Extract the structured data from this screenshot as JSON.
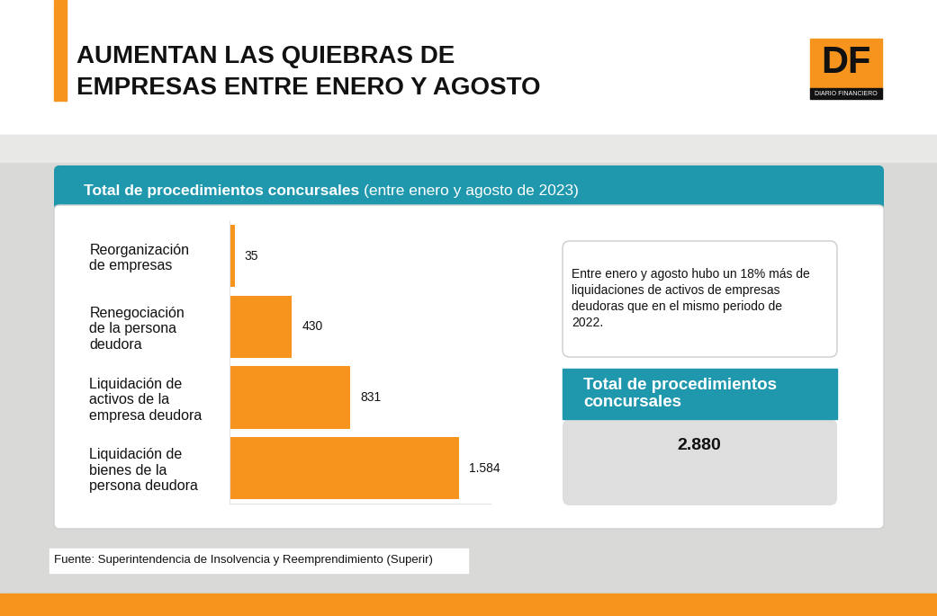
{
  "chart_data": {
    "type": "bar",
    "orientation": "horizontal",
    "title": "AUMENTAN LAS QUIEBRAS DE\nEMPRESAS ENTRE ENERO Y AGOSTO",
    "subtitle": "Total de procedimientos concursales",
    "subtitle_note": "(entre enero y agosto de 2023)",
    "categories": [
      "Reorganización de empresas",
      "Renegociación de la persona deudora",
      "Liquidación de activos de la empresa deudora",
      "Liquidación de bienes de la persona deudora"
    ],
    "values": [
      35,
      430,
      831,
      1584
    ],
    "value_labels": [
      "35",
      "430",
      "831",
      "1.584"
    ],
    "color": "#f7941d",
    "xlim": [
      0,
      1800
    ],
    "data_labels": true,
    "tick_labels": "y",
    "annotation": "Entre enero y agosto hubo un 18% más de liquidaciones de activos de empresas deudoras que en el mismo periodo de 2022.",
    "total": {
      "title": "Total de procedimientos concursales",
      "value": "2.880"
    },
    "source": "Fuente: Superintendencia de Insolvencia y Reemprendimiento (Superir)",
    "logo": {
      "text": "DF",
      "subtitle": "DIARIO FINANCIERO"
    }
  }
}
